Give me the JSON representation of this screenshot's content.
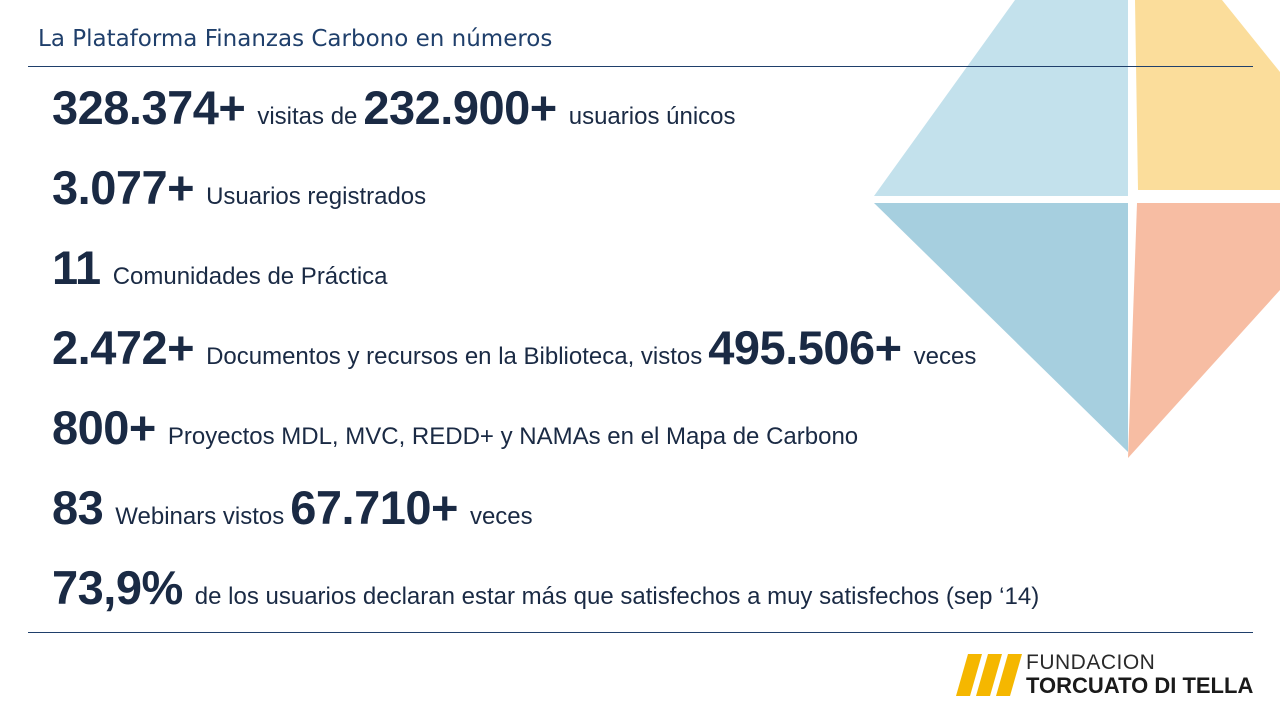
{
  "header": {
    "title": "La Plataforma Finanzas Carbono en números"
  },
  "stats": [
    {
      "parts": [
        {
          "t": "num",
          "v": "328.374+"
        },
        {
          "t": "txt",
          "v": "visitas de"
        },
        {
          "t": "num",
          "v": "232.900+"
        },
        {
          "t": "txt",
          "v": "usuarios únicos"
        }
      ]
    },
    {
      "parts": [
        {
          "t": "num",
          "v": "3.077+"
        },
        {
          "t": "txt",
          "v": "Usuarios registrados"
        }
      ]
    },
    {
      "parts": [
        {
          "t": "num",
          "v": "11"
        },
        {
          "t": "txt",
          "v": "Comunidades de Práctica"
        }
      ]
    },
    {
      "parts": [
        {
          "t": "num",
          "v": "2.472+"
        },
        {
          "t": "txt",
          "v": "Documentos y recursos en la Biblioteca, vistos"
        },
        {
          "t": "num",
          "v": "495.506+"
        },
        {
          "t": "txt",
          "v": "veces"
        }
      ]
    },
    {
      "parts": [
        {
          "t": "num",
          "v": "800+"
        },
        {
          "t": "txt",
          "v": "Proyectos MDL, MVC, REDD+ y NAMAs en el Mapa de Carbono"
        }
      ]
    },
    {
      "parts": [
        {
          "t": "num",
          "v": "83"
        },
        {
          "t": "txt",
          "v": "Webinars vistos"
        },
        {
          "t": "num",
          "v": "67.710+"
        },
        {
          "t": "txt",
          "v": "veces"
        }
      ]
    },
    {
      "parts": [
        {
          "t": "num",
          "v": "73,9%"
        },
        {
          "t": "txt",
          "v": "de los usuarios declaran estar más que satisfechos a muy satisfechos (sep ‘14)"
        }
      ]
    }
  ],
  "logo": {
    "line1": "FUNDACION",
    "line2": "TORCUATO DI TELLA"
  },
  "colors": {
    "title": "#1f3f6b",
    "star_light_blue": "#c3e1ec",
    "star_yellow": "#fbdd9b",
    "star_blue": "#a6cfdf",
    "star_salmon": "#f7bda3",
    "logo_yellow": "#f5b700"
  },
  "icons": {
    "background": "four-point-star-icon",
    "logo": "stripes-logo-icon"
  }
}
